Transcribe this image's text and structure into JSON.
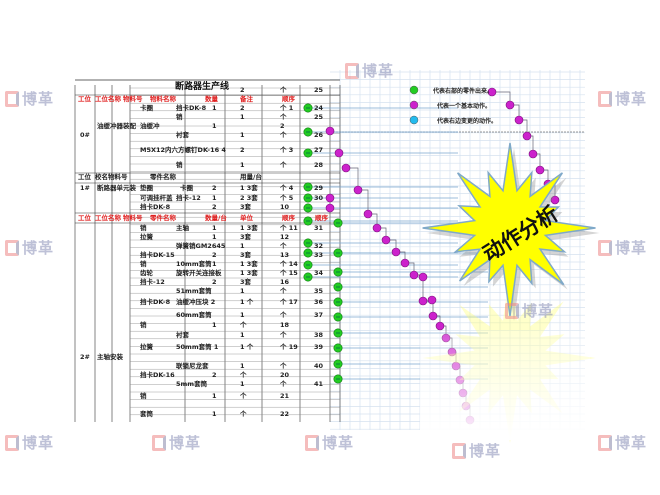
{
  "title": "断路器生产线",
  "header_top": {
    "st": "工位",
    "stname": "工位名称",
    "matno": "物料号",
    "name": "物料名称",
    "qty": "数量",
    "note": "备注",
    "unit": "顺序"
  },
  "header_mid": {
    "st": "工位",
    "stname": "校名物料号",
    "name": "零件名称",
    "note": "用量/台"
  },
  "header_bottom": {
    "st": "工位",
    "stname": "工位名称",
    "matno": "物料号",
    "name": "零件名称",
    "qty": "数量/台",
    "note": "单位",
    "unit": "顺序"
  },
  "rows": [
    [
      [
        "note",
        "2"
      ],
      [
        "unit",
        "个"
      ],
      [
        "order",
        "25"
      ]
    ],
    [
      [
        "name",
        "卡圈"
      ],
      [
        "name2",
        "挡卡DK-8"
      ],
      [
        "qty",
        "1"
      ],
      [
        "note",
        "2"
      ],
      [
        "unit",
        "个 1"
      ],
      [
        "order",
        "24"
      ]
    ],
    [
      [
        "name2",
        "销"
      ],
      [
        "note",
        "1"
      ],
      [
        "unit",
        "个"
      ],
      [
        "order",
        "25"
      ]
    ],
    [
      [
        "stname",
        "油缓冲器装配"
      ],
      [
        "name",
        "油缓冲"
      ],
      [
        "qty",
        "1"
      ],
      [
        "unit",
        "2"
      ]
    ],
    [
      [
        "st",
        "0#"
      ],
      [
        "name2",
        "衬套"
      ],
      [
        "note",
        "1"
      ],
      [
        "unit",
        "个"
      ],
      [
        "order",
        "26"
      ]
    ],
    [
      [
        "name",
        "M5X12内六方螺钉DK-16  4"
      ],
      [
        "note",
        "2"
      ],
      [
        "unit",
        "个 3"
      ],
      [
        "order",
        "27"
      ]
    ],
    [
      [
        "name2",
        "销"
      ],
      [
        "note",
        "1"
      ],
      [
        "unit",
        "个"
      ],
      [
        "order",
        "28"
      ]
    ],
    [
      [
        "st",
        "1#"
      ],
      [
        "stname",
        "断路器单元装"
      ],
      [
        "name",
        "垫圈"
      ],
      [
        "name2b",
        "卡圈"
      ],
      [
        "qty",
        "2"
      ],
      [
        "note",
        "1 3套"
      ],
      [
        "unit",
        "个 4"
      ],
      [
        "order",
        "29"
      ]
    ],
    [
      [
        "name",
        "可调挂杆盖"
      ],
      [
        "name2",
        "挡卡-12"
      ],
      [
        "qty",
        "1"
      ],
      [
        "note",
        "2 3套"
      ],
      [
        "unit",
        "个 5"
      ],
      [
        "order",
        "30"
      ]
    ],
    [
      [
        "name",
        "挡卡DK-8"
      ],
      [
        "qty",
        "2"
      ],
      [
        "note",
        "3套"
      ],
      [
        "unit",
        "10"
      ]
    ],
    [
      [
        "name",
        "销"
      ],
      [
        "name2",
        "主轴"
      ],
      [
        "qty",
        "1"
      ],
      [
        "note",
        "1 3套"
      ],
      [
        "unit",
        "个 11"
      ],
      [
        "order",
        "31"
      ]
    ],
    [
      [
        "name",
        "拉簧"
      ],
      [
        "qty",
        "1"
      ],
      [
        "note",
        "3套"
      ],
      [
        "unit",
        "12"
      ]
    ],
    [
      [
        "name2",
        "弹簧销GM2645"
      ],
      [
        "note",
        "1"
      ],
      [
        "unit",
        "个"
      ],
      [
        "order",
        "32"
      ]
    ],
    [
      [
        "name",
        "挡卡DK-15"
      ],
      [
        "qty",
        "2"
      ],
      [
        "note",
        "3套"
      ],
      [
        "unit",
        "13"
      ],
      [
        "order",
        "33"
      ]
    ],
    [
      [
        "name",
        "销"
      ],
      [
        "name2",
        "10mm套筒"
      ],
      [
        "qty",
        "1"
      ],
      [
        "note",
        "1 3套"
      ],
      [
        "unit",
        "个 14"
      ]
    ],
    [
      [
        "name",
        "齿轮"
      ],
      [
        "name2",
        "旋转开关连接板"
      ],
      [
        "note",
        "1 3套"
      ],
      [
        "unit",
        "个 15"
      ],
      [
        "order",
        "34"
      ]
    ],
    [
      [
        "name",
        "挡卡-12"
      ],
      [
        "qty",
        "2"
      ],
      [
        "note",
        "3套"
      ],
      [
        "unit",
        "16"
      ]
    ],
    [
      [
        "name2",
        "51mm套筒"
      ],
      [
        "note",
        "1"
      ],
      [
        "unit",
        "个"
      ],
      [
        "order",
        "35"
      ]
    ],
    [
      [
        "name",
        "挡卡DK-8"
      ],
      [
        "name2",
        "油缓冲压块 2"
      ],
      [
        "note",
        "1 个"
      ],
      [
        "unit",
        "个 17"
      ],
      [
        "order",
        "36"
      ]
    ],
    [
      [
        "name2",
        "60mm套筒"
      ],
      [
        "note",
        "1"
      ],
      [
        "unit",
        "个"
      ],
      [
        "order",
        "37"
      ]
    ],
    [
      [
        "name",
        "销"
      ],
      [
        "qty",
        "1"
      ],
      [
        "note",
        "个"
      ],
      [
        "unit",
        "18"
      ]
    ],
    [
      [
        "name2",
        "衬套"
      ],
      [
        "note",
        "1"
      ],
      [
        "unit",
        "个"
      ],
      [
        "order",
        "38"
      ]
    ],
    [
      [
        "name",
        "拉簧"
      ],
      [
        "name2",
        "50mm套筒 1"
      ],
      [
        "note",
        "1 个"
      ],
      [
        "unit",
        "个 19"
      ],
      [
        "order",
        "39"
      ]
    ],
    [
      [
        "st",
        "2#"
      ],
      [
        "stname",
        "主轴安装"
      ]
    ],
    [
      [
        "name2",
        "联锁尼龙套"
      ],
      [
        "note",
        "1"
      ],
      [
        "unit",
        "个"
      ],
      [
        "order",
        "40"
      ]
    ],
    [
      [
        "name",
        "挡卡DK-16"
      ],
      [
        "qty",
        "2"
      ],
      [
        "note",
        "个"
      ],
      [
        "unit",
        "20"
      ]
    ],
    [
      [
        "name2",
        "5mm套筒"
      ],
      [
        "note",
        "1"
      ],
      [
        "unit",
        "个"
      ],
      [
        "order",
        "41"
      ]
    ],
    [
      [
        "name",
        "销"
      ],
      [
        "qty",
        "1"
      ],
      [
        "note",
        "个"
      ],
      [
        "unit",
        "21"
      ]
    ],
    [
      [
        "name",
        "套筒"
      ],
      [
        "qty",
        "1"
      ],
      [
        "note",
        "个"
      ],
      [
        "unit",
        "22"
      ]
    ]
  ],
  "legend": [
    {
      "color": "#22cc22",
      "text": "代表右部的零件出来。"
    },
    {
      "color": "#cc22cc",
      "text": "代表一个基本动作。"
    },
    {
      "color": "#22bbee",
      "text": "代表右边变更的动作。"
    }
  ],
  "callout": "动作分析",
  "watermark": "博革",
  "colors": {
    "green_dot": "#22cc22",
    "purple_dot": "#cc22cc",
    "header_red": "#e02020",
    "burst_yellow": "#ffff00",
    "grid": "#c8d8ea"
  }
}
